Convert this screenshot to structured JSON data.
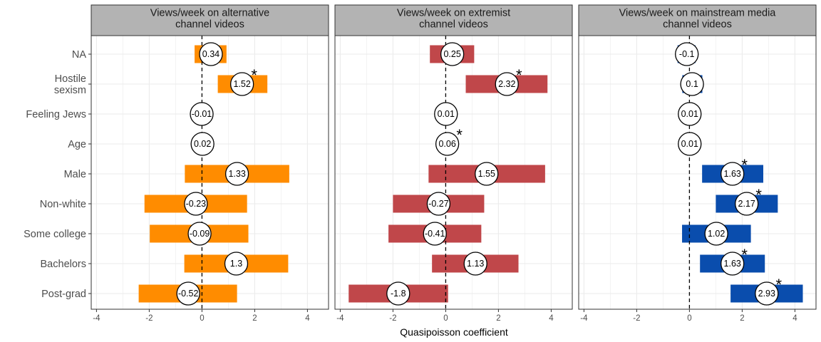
{
  "chart_data": {
    "type": "bar",
    "xlabel": "Quasipoisson coefficient",
    "xlim": [
      -4.2,
      4.8
    ],
    "xticks": [
      -4,
      -2,
      0,
      2,
      4
    ],
    "grid": true,
    "categories": [
      "NA",
      "Hostile\nsexism",
      "Feeling Jews",
      "Age",
      "Male",
      "Non-white",
      "Some college",
      "Bachelors",
      "Post-grad"
    ],
    "panels": [
      {
        "title": "Views/week on alternative\nchannel videos",
        "color": "#FF8C00",
        "estimates": [
          0.34,
          1.52,
          -0.01,
          0.02,
          1.33,
          -0.23,
          -0.09,
          1.3,
          -0.52
        ],
        "labels": [
          "0.34",
          "1.52",
          "-0.01",
          "0.02",
          "1.33",
          "-0.23",
          "-0.09",
          "1.3",
          "-0.52"
        ],
        "ci_low": [
          -0.28,
          0.6,
          -0.03,
          -0.01,
          -0.65,
          -2.18,
          -1.98,
          -0.67,
          -2.4
        ],
        "ci_high": [
          0.93,
          2.48,
          0.01,
          0.05,
          3.31,
          1.71,
          1.76,
          3.27,
          1.33
        ],
        "significant": [
          false,
          true,
          false,
          false,
          false,
          false,
          false,
          false,
          false
        ]
      },
      {
        "title": "Views/week on extremist\nchannel videos",
        "color": "#C0474A",
        "estimates": [
          0.25,
          2.32,
          0.01,
          0.06,
          1.55,
          -0.27,
          -0.41,
          1.13,
          -1.8
        ],
        "labels": [
          "0.25",
          "2.32",
          "0.01",
          "0.06",
          "1.55",
          "-0.27",
          "-0.41",
          "1.13",
          "-1.8"
        ],
        "ci_low": [
          -0.6,
          0.76,
          -0.01,
          0.02,
          -0.65,
          -2.0,
          -2.17,
          -0.52,
          -3.68
        ],
        "ci_high": [
          1.08,
          3.86,
          0.03,
          0.1,
          3.77,
          1.46,
          1.35,
          2.76,
          0.09
        ],
        "significant": [
          false,
          true,
          false,
          true,
          false,
          false,
          false,
          false,
          false
        ]
      },
      {
        "title": "Views/week on mainstream media\nchannel videos",
        "color": "#0A4DAD",
        "estimates": [
          -0.1,
          0.1,
          0.01,
          0.01,
          1.63,
          2.17,
          1.02,
          1.63,
          2.93
        ],
        "labels": [
          "-0.1",
          "0.1",
          "0.01",
          "0.01",
          "1.63",
          "2.17",
          "1.02",
          "1.63",
          "2.93"
        ],
        "ci_low": [
          -0.45,
          -0.27,
          -0.01,
          -0.01,
          0.48,
          1.0,
          -0.28,
          0.4,
          1.56
        ],
        "ci_high": [
          0.23,
          0.49,
          0.03,
          0.03,
          2.8,
          3.35,
          2.33,
          2.86,
          4.3
        ],
        "significant": [
          false,
          false,
          false,
          false,
          true,
          true,
          false,
          true,
          true
        ]
      }
    ]
  }
}
